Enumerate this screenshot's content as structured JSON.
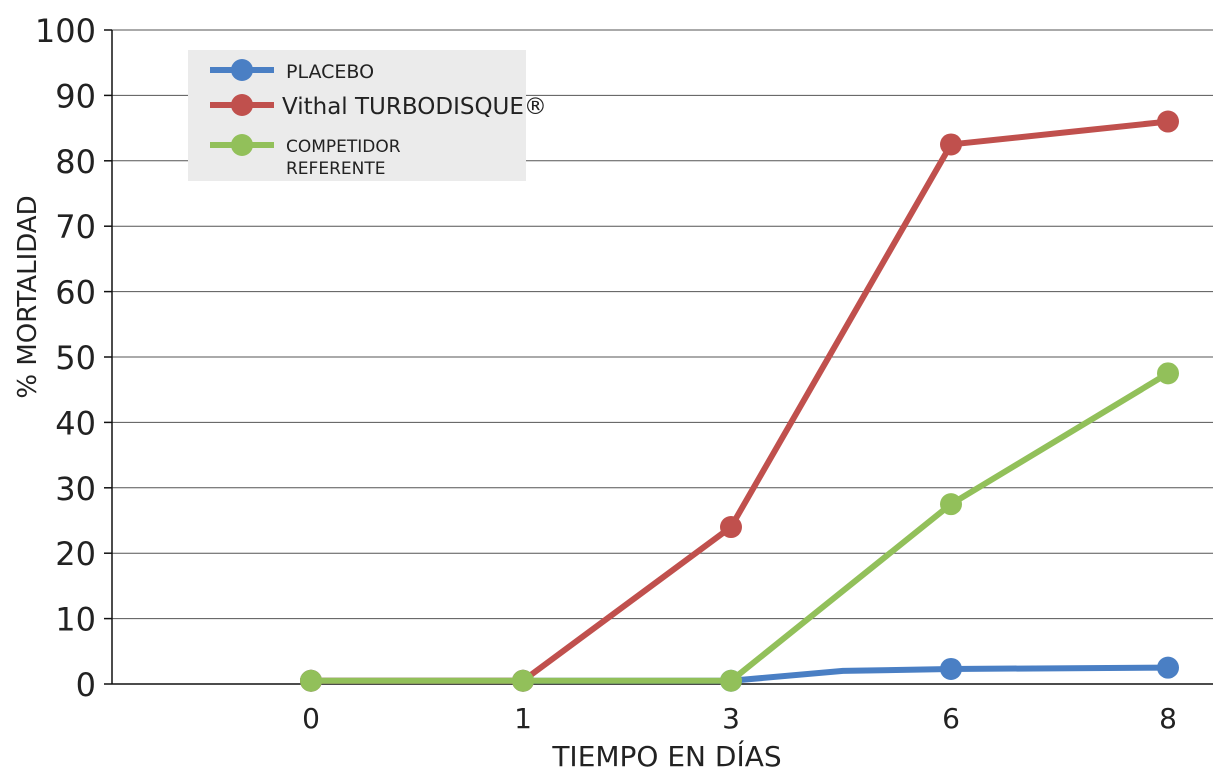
{
  "chart_data": {
    "type": "line",
    "title": "",
    "xlabel": "TIEMPO EN DÍAS",
    "ylabel": "% MORTALIDAD",
    "x": [
      "0",
      "1",
      "3",
      "6",
      "8"
    ],
    "ylim": [
      0,
      100
    ],
    "yticks": [
      0,
      10,
      20,
      30,
      40,
      50,
      60,
      70,
      80,
      90,
      100
    ],
    "grid": "horizontal",
    "legend_position": "top-left",
    "series": [
      {
        "name": "PLACEBO",
        "color": "#4a7fc4",
        "values": [
          0.5,
          0.5,
          0.5,
          2.3,
          2.5
        ],
        "extra_vertex_between_3_and_6": 2.0
      },
      {
        "name": "Vithal TURBODISQUE®",
        "color": "#c0504d",
        "values": [
          0.5,
          0.5,
          24,
          82.5,
          86
        ]
      },
      {
        "name": "COMPETIDOR REFERENTE",
        "color": "#92c05a",
        "values": [
          0.5,
          0.5,
          0.5,
          27.5,
          47.5
        ]
      }
    ]
  }
}
